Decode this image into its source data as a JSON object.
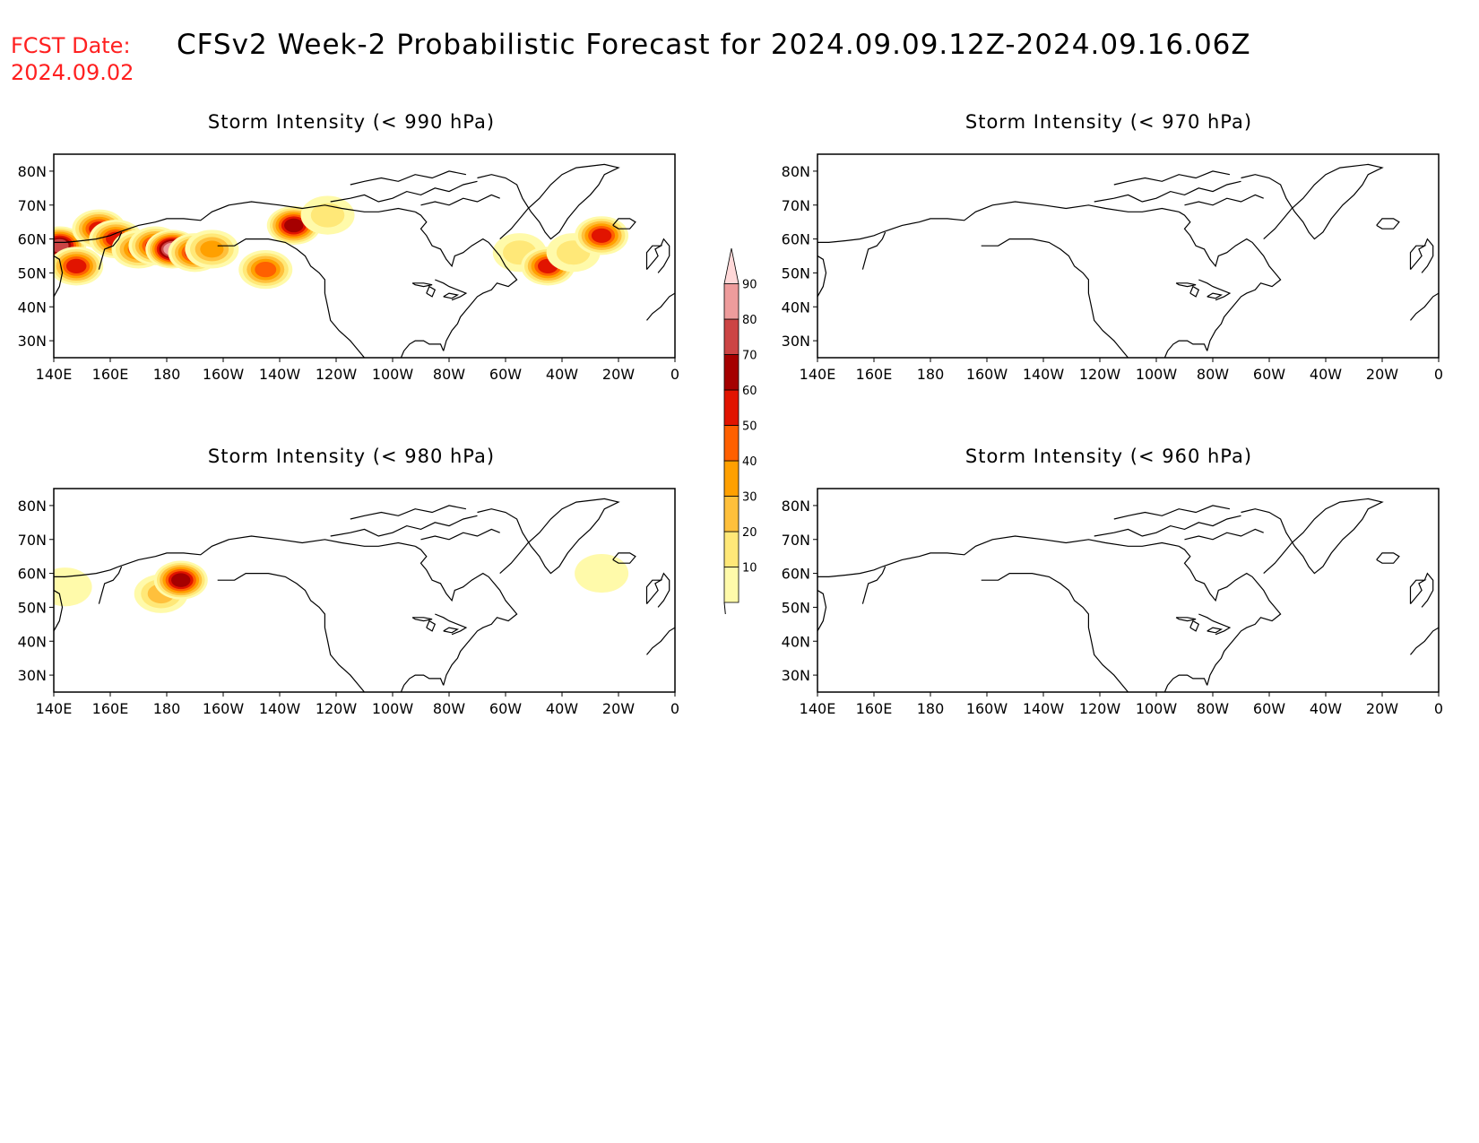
{
  "header": {
    "fcst_label": "FCST Date:",
    "fcst_date": "2024.09.02",
    "title": "CFSv2 Week-2 Probabilistic Forecast for 2024.09.09.12Z-2024.09.16.06Z"
  },
  "axes": {
    "lon_labels": [
      "140E",
      "160E",
      "180",
      "160W",
      "140W",
      "120W",
      "100W",
      "80W",
      "60W",
      "40W",
      "20W",
      "0"
    ],
    "lat_labels": [
      "80N",
      "70N",
      "60N",
      "50N",
      "40N",
      "30N"
    ],
    "lon_range_deg_east": [
      140,
      360
    ],
    "lat_range_deg": [
      25,
      85
    ]
  },
  "panels": [
    {
      "id": "p990",
      "title": "Storm Intensity (< 990 hPa)",
      "blobs": [
        {
          "lon": 142,
          "lat": 58,
          "prob": 80
        },
        {
          "lon": 148,
          "lat": 52,
          "prob": 60
        },
        {
          "lon": 156,
          "lat": 63,
          "prob": 60
        },
        {
          "lon": 162,
          "lat": 60,
          "prob": 60
        },
        {
          "lon": 170,
          "lat": 57,
          "prob": 55
        },
        {
          "lon": 176,
          "lat": 58,
          "prob": 65
        },
        {
          "lon": 182,
          "lat": 57,
          "prob": 90
        },
        {
          "lon": 190,
          "lat": 56,
          "prob": 60
        },
        {
          "lon": 196,
          "lat": 57,
          "prob": 45
        },
        {
          "lon": 215,
          "lat": 51,
          "prob": 55
        },
        {
          "lon": 225,
          "lat": 64,
          "prob": 70
        },
        {
          "lon": 237,
          "lat": 67,
          "prob": 25
        },
        {
          "lon": 305,
          "lat": 56,
          "prob": 25
        },
        {
          "lon": 315,
          "lat": 52,
          "prob": 65
        },
        {
          "lon": 324,
          "lat": 56,
          "prob": 20
        },
        {
          "lon": 334,
          "lat": 61,
          "prob": 65
        }
      ]
    },
    {
      "id": "p970",
      "title": "Storm Intensity (< 970 hPa)",
      "blobs": []
    },
    {
      "id": "p980",
      "title": "Storm Intensity (< 980 hPa)",
      "blobs": [
        {
          "lon": 144,
          "lat": 56,
          "prob": 15
        },
        {
          "lon": 178,
          "lat": 54,
          "prob": 35
        },
        {
          "lon": 185,
          "lat": 58,
          "prob": 75
        },
        {
          "lon": 334,
          "lat": 60,
          "prob": 15
        }
      ]
    },
    {
      "id": "p960",
      "title": "Storm Intensity (< 960 hPa)",
      "blobs": []
    }
  ],
  "colorbar": {
    "levels": [
      "10",
      "20",
      "30",
      "40",
      "50",
      "60",
      "70",
      "80",
      "90"
    ],
    "colors": [
      "#fffaaa",
      "#ffe878",
      "#ffc03c",
      "#ffa000",
      "#ff6000",
      "#e11400",
      "#a50000",
      "#cc4545",
      "#ee9c9c",
      "#ffd8d8"
    ]
  }
}
